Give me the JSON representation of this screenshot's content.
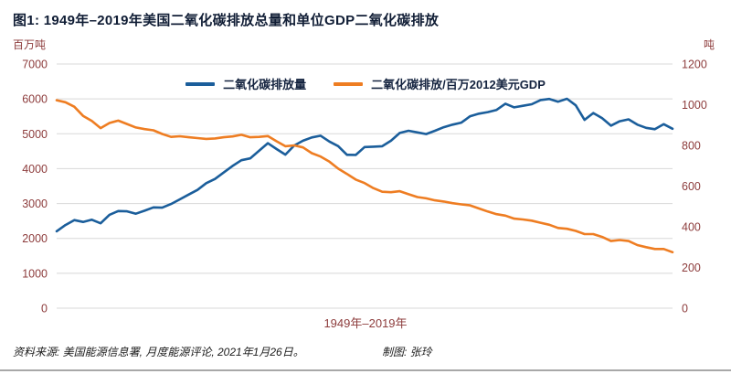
{
  "title": "图1: 1949年–2019年美国二氧化碳排放总量和单位GDP二氧化碳排放",
  "footer": {
    "source": "资料来源: 美国能源信息署, 月度能源评论, 2021年1月26日。",
    "credit": "制图: 张玲"
  },
  "colors": {
    "emissions_line": "#1b5e9b",
    "intensity_line": "#ee7d22",
    "tick_labels": "#8d3c3c",
    "gridline": "#d8d8d8",
    "title_text": "#101d35"
  },
  "chart_data": {
    "type": "line",
    "title": "图1: 1949年–2019年美国二氧化碳排放总量和单位GDP二氧化碳排放",
    "xlabel": "1949年–2019年",
    "grid": "horizontal",
    "legend_position": "top-center",
    "left_axis": {
      "label": "百万吨",
      "min": 0,
      "max": 7000,
      "ticks": [
        7000,
        6000,
        5000,
        4000,
        3000,
        2000,
        1000,
        0
      ]
    },
    "right_axis": {
      "label": "吨",
      "min": 0,
      "max": 1200,
      "ticks": [
        1200,
        1000,
        800,
        600,
        400,
        200,
        0
      ]
    },
    "x": [
      1949,
      1950,
      1951,
      1952,
      1953,
      1954,
      1955,
      1956,
      1957,
      1958,
      1959,
      1960,
      1961,
      1962,
      1963,
      1964,
      1965,
      1966,
      1967,
      1968,
      1969,
      1970,
      1971,
      1972,
      1973,
      1974,
      1975,
      1976,
      1977,
      1978,
      1979,
      1980,
      1981,
      1982,
      1983,
      1984,
      1985,
      1986,
      1987,
      1988,
      1989,
      1990,
      1991,
      1992,
      1993,
      1994,
      1995,
      1996,
      1997,
      1998,
      1999,
      2000,
      2001,
      2002,
      2003,
      2004,
      2005,
      2006,
      2007,
      2008,
      2009,
      2010,
      2011,
      2012,
      2013,
      2014,
      2015,
      2016,
      2017,
      2018,
      2019
    ],
    "series": [
      {
        "name": "二氧化碳排放量",
        "axis": "left",
        "unit": "百万吨",
        "color": "#1b5e9b",
        "values": [
          2206,
          2382,
          2526,
          2473,
          2536,
          2432,
          2676,
          2785,
          2776,
          2708,
          2795,
          2890,
          2880,
          2987,
          3119,
          3255,
          3390,
          3585,
          3705,
          3890,
          4080,
          4243,
          4295,
          4511,
          4729,
          4563,
          4403,
          4663,
          4800,
          4894,
          4944,
          4778,
          4645,
          4397,
          4393,
          4620,
          4630,
          4643,
          4800,
          5023,
          5086,
          5040,
          4992,
          5086,
          5188,
          5262,
          5320,
          5503,
          5577,
          5622,
          5685,
          5862,
          5756,
          5803,
          5847,
          5966,
          5999,
          5920,
          6003,
          5815,
          5398,
          5595,
          5447,
          5234,
          5359,
          5415,
          5262,
          5170,
          5131,
          5275,
          5145
        ]
      },
      {
        "name": "二氧化碳排放/百万2012美元GDP",
        "axis": "right",
        "unit": "吨",
        "color": "#ee7d22",
        "values": [
          1022,
          1012,
          990,
          945,
          920,
          885,
          910,
          922,
          905,
          888,
          880,
          874,
          856,
          842,
          845,
          840,
          836,
          832,
          834,
          840,
          844,
          852,
          840,
          842,
          846,
          820,
          796,
          800,
          790,
          762,
          745,
          720,
          686,
          660,
          632,
          615,
          590,
          572,
          570,
          575,
          560,
          546,
          540,
          530,
          524,
          516,
          510,
          505,
          490,
          475,
          462,
          455,
          440,
          436,
          430,
          420,
          410,
          394,
          390,
          380,
          364,
          364,
          350,
          330,
          335,
          330,
          310,
          300,
          291,
          291,
          275
        ]
      }
    ]
  }
}
